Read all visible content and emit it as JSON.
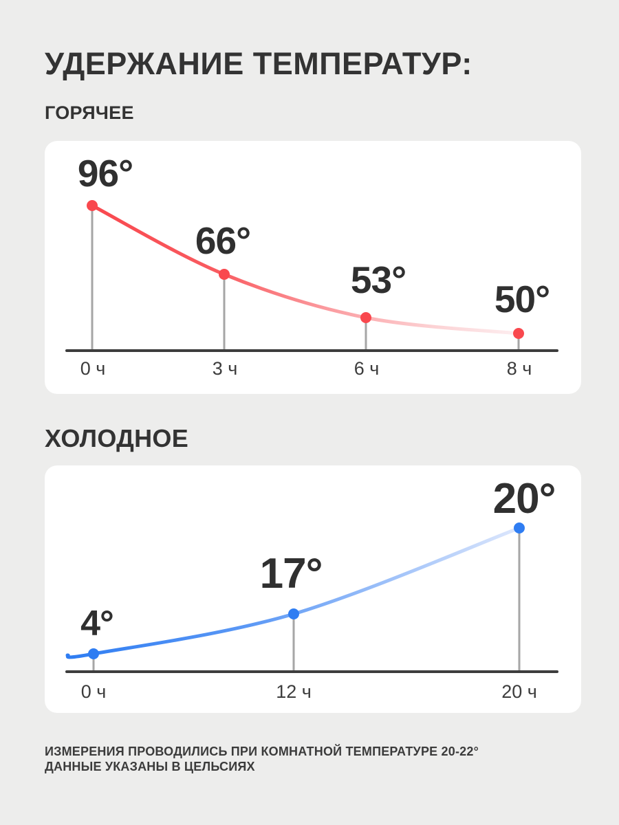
{
  "title": "УДЕРЖАНИЕ ТЕМПЕРАТУР:",
  "chart_data": [
    {
      "id": "hot",
      "type": "line",
      "title": "ГОРЯЧЕЕ",
      "x": [
        0,
        3,
        6,
        8
      ],
      "x_unit": "ч",
      "categories": [
        "0 ч",
        "3 ч",
        "6 ч",
        "8 ч"
      ],
      "values": [
        96,
        66,
        53,
        50
      ],
      "point_labels": [
        "96°",
        "66°",
        "53°",
        "50°"
      ],
      "unit": "°C",
      "line_color": "#f9484e",
      "line_fade_to": "#fdeef0",
      "stem_color": "#a6a6a6",
      "axis_color": "#3d3d3d",
      "trend": "falling",
      "legend": "none",
      "grid": false
    },
    {
      "id": "cold",
      "type": "line",
      "title": "ХОЛОДНОЕ",
      "x": [
        0,
        12,
        20
      ],
      "x_unit": "ч",
      "categories": [
        "0 ч",
        "12 ч",
        "20 ч"
      ],
      "values": [
        4,
        17,
        20
      ],
      "point_labels": [
        "4°",
        "17°",
        "20°"
      ],
      "unit": "°C",
      "line_color": "#2f7df2",
      "line_fade_to": "#dde7fc",
      "stem_color": "#a6a6a6",
      "axis_color": "#3d3d3d",
      "trend": "rising",
      "legend": "none",
      "grid": false
    }
  ],
  "footnote": {
    "line1": "ИЗМЕРЕНИЯ ПРОВОДИЛИСЬ ПРИ КОМНАТНОЙ ТЕМПЕРАТУРЕ 20-22°",
    "line2": "ДАННЫЕ УКАЗАНЫ В ЦЕЛЬСИЯХ"
  }
}
